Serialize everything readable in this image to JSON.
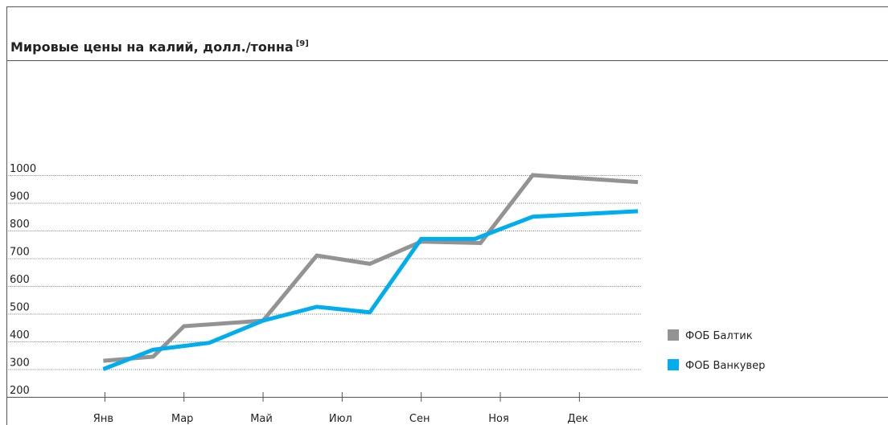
{
  "chart_data": {
    "type": "line",
    "title": "Мировые цены на калий, долл./тонна",
    "title_note": "[9]",
    "xlim": [
      -0.95,
      6.8
    ],
    "xticks": [
      {
        "value": 0,
        "label": "Янв"
      },
      {
        "value": 1,
        "label": "Мар"
      },
      {
        "value": 2,
        "label": "Май"
      },
      {
        "value": 3,
        "label": "Июл"
      },
      {
        "value": 4,
        "label": "Сен"
      },
      {
        "value": 5,
        "label": "Ноя"
      },
      {
        "value": 6,
        "label": "Дек"
      }
    ],
    "ylim": [
      200,
      1000
    ],
    "yticks": [
      200,
      300,
      400,
      500,
      600,
      700,
      800,
      900,
      1000
    ],
    "grid": true,
    "legend": "right",
    "series": [
      {
        "name": "ФОБ Балтик",
        "color": "#939393",
        "x": [
          0,
          0.63,
          1.02,
          2.02,
          2.7,
          3.37,
          4.02,
          4.77,
          5.43,
          6.76
        ],
        "values": [
          330,
          345,
          455,
          475,
          710,
          680,
          760,
          755,
          1000,
          975
        ]
      },
      {
        "name": "ФОБ Ванкувер",
        "color": "#00aeef",
        "x": [
          0,
          0.63,
          1.34,
          2.02,
          2.7,
          3.37,
          4.02,
          4.7,
          5.43,
          6.76
        ],
        "values": [
          300,
          370,
          395,
          475,
          525,
          505,
          770,
          770,
          850,
          870
        ]
      }
    ]
  }
}
